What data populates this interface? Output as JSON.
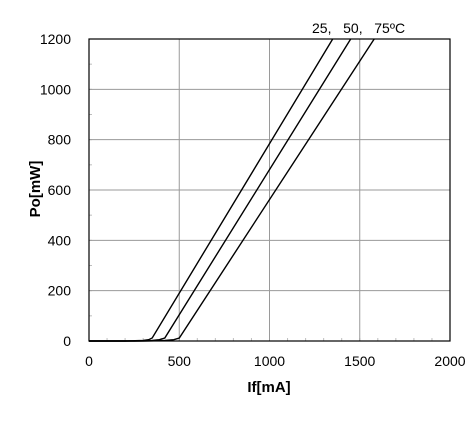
{
  "chart_data": {
    "type": "line",
    "xlabel": "If[mA]",
    "ylabel": "Po[mW]",
    "xlim": [
      0,
      2000
    ],
    "ylim": [
      0,
      1200
    ],
    "xticks": [
      "0",
      "500",
      "1000",
      "1500",
      "2000"
    ],
    "yticks": [
      "0",
      "200",
      "400",
      "600",
      "800",
      "1000",
      "1200"
    ],
    "grid": true,
    "annotation": "25,   50,   75ºC",
    "series": [
      {
        "x": [
          0,
          200,
          300,
          330,
          350,
          1350
        ],
        "y": [
          0,
          0,
          2,
          5,
          12,
          1200
        ]
      },
      {
        "x": [
          0,
          250,
          350,
          390,
          420,
          1450
        ],
        "y": [
          0,
          0,
          2,
          5,
          12,
          1200
        ]
      },
      {
        "x": [
          0,
          300,
          420,
          470,
          500,
          1580
        ],
        "y": [
          0,
          0,
          2,
          5,
          12,
          1200
        ]
      }
    ]
  }
}
